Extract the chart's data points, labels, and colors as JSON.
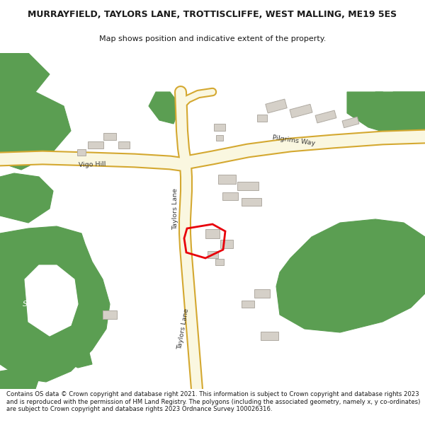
{
  "title_line1": "MURRAYFIELD, TAYLORS LANE, TROTTISCLIFFE, WEST MALLING, ME19 5ES",
  "title_line2": "Map shows position and indicative extent of the property.",
  "footer_text": "Contains OS data © Crown copyright and database right 2021. This information is subject to Crown copyright and database rights 2023 and is reproduced with the permission of HM Land Registry. The polygons (including the associated geometry, namely x, y co-ordinates) are subject to Crown copyright and database rights 2023 Ordnance Survey 100026316.",
  "bg": "#ffffff",
  "map_bg": "#f7f6f2",
  "road_fill": "#faf7e0",
  "road_edge": "#d4a830",
  "green": "#5b9e52",
  "bld_fill": "#d5d0c8",
  "bld_edge": "#b0aba3",
  "red_plot": "#e8000a",
  "dark_text": "#1a1a1a",
  "road_text": "#3a3a3a"
}
